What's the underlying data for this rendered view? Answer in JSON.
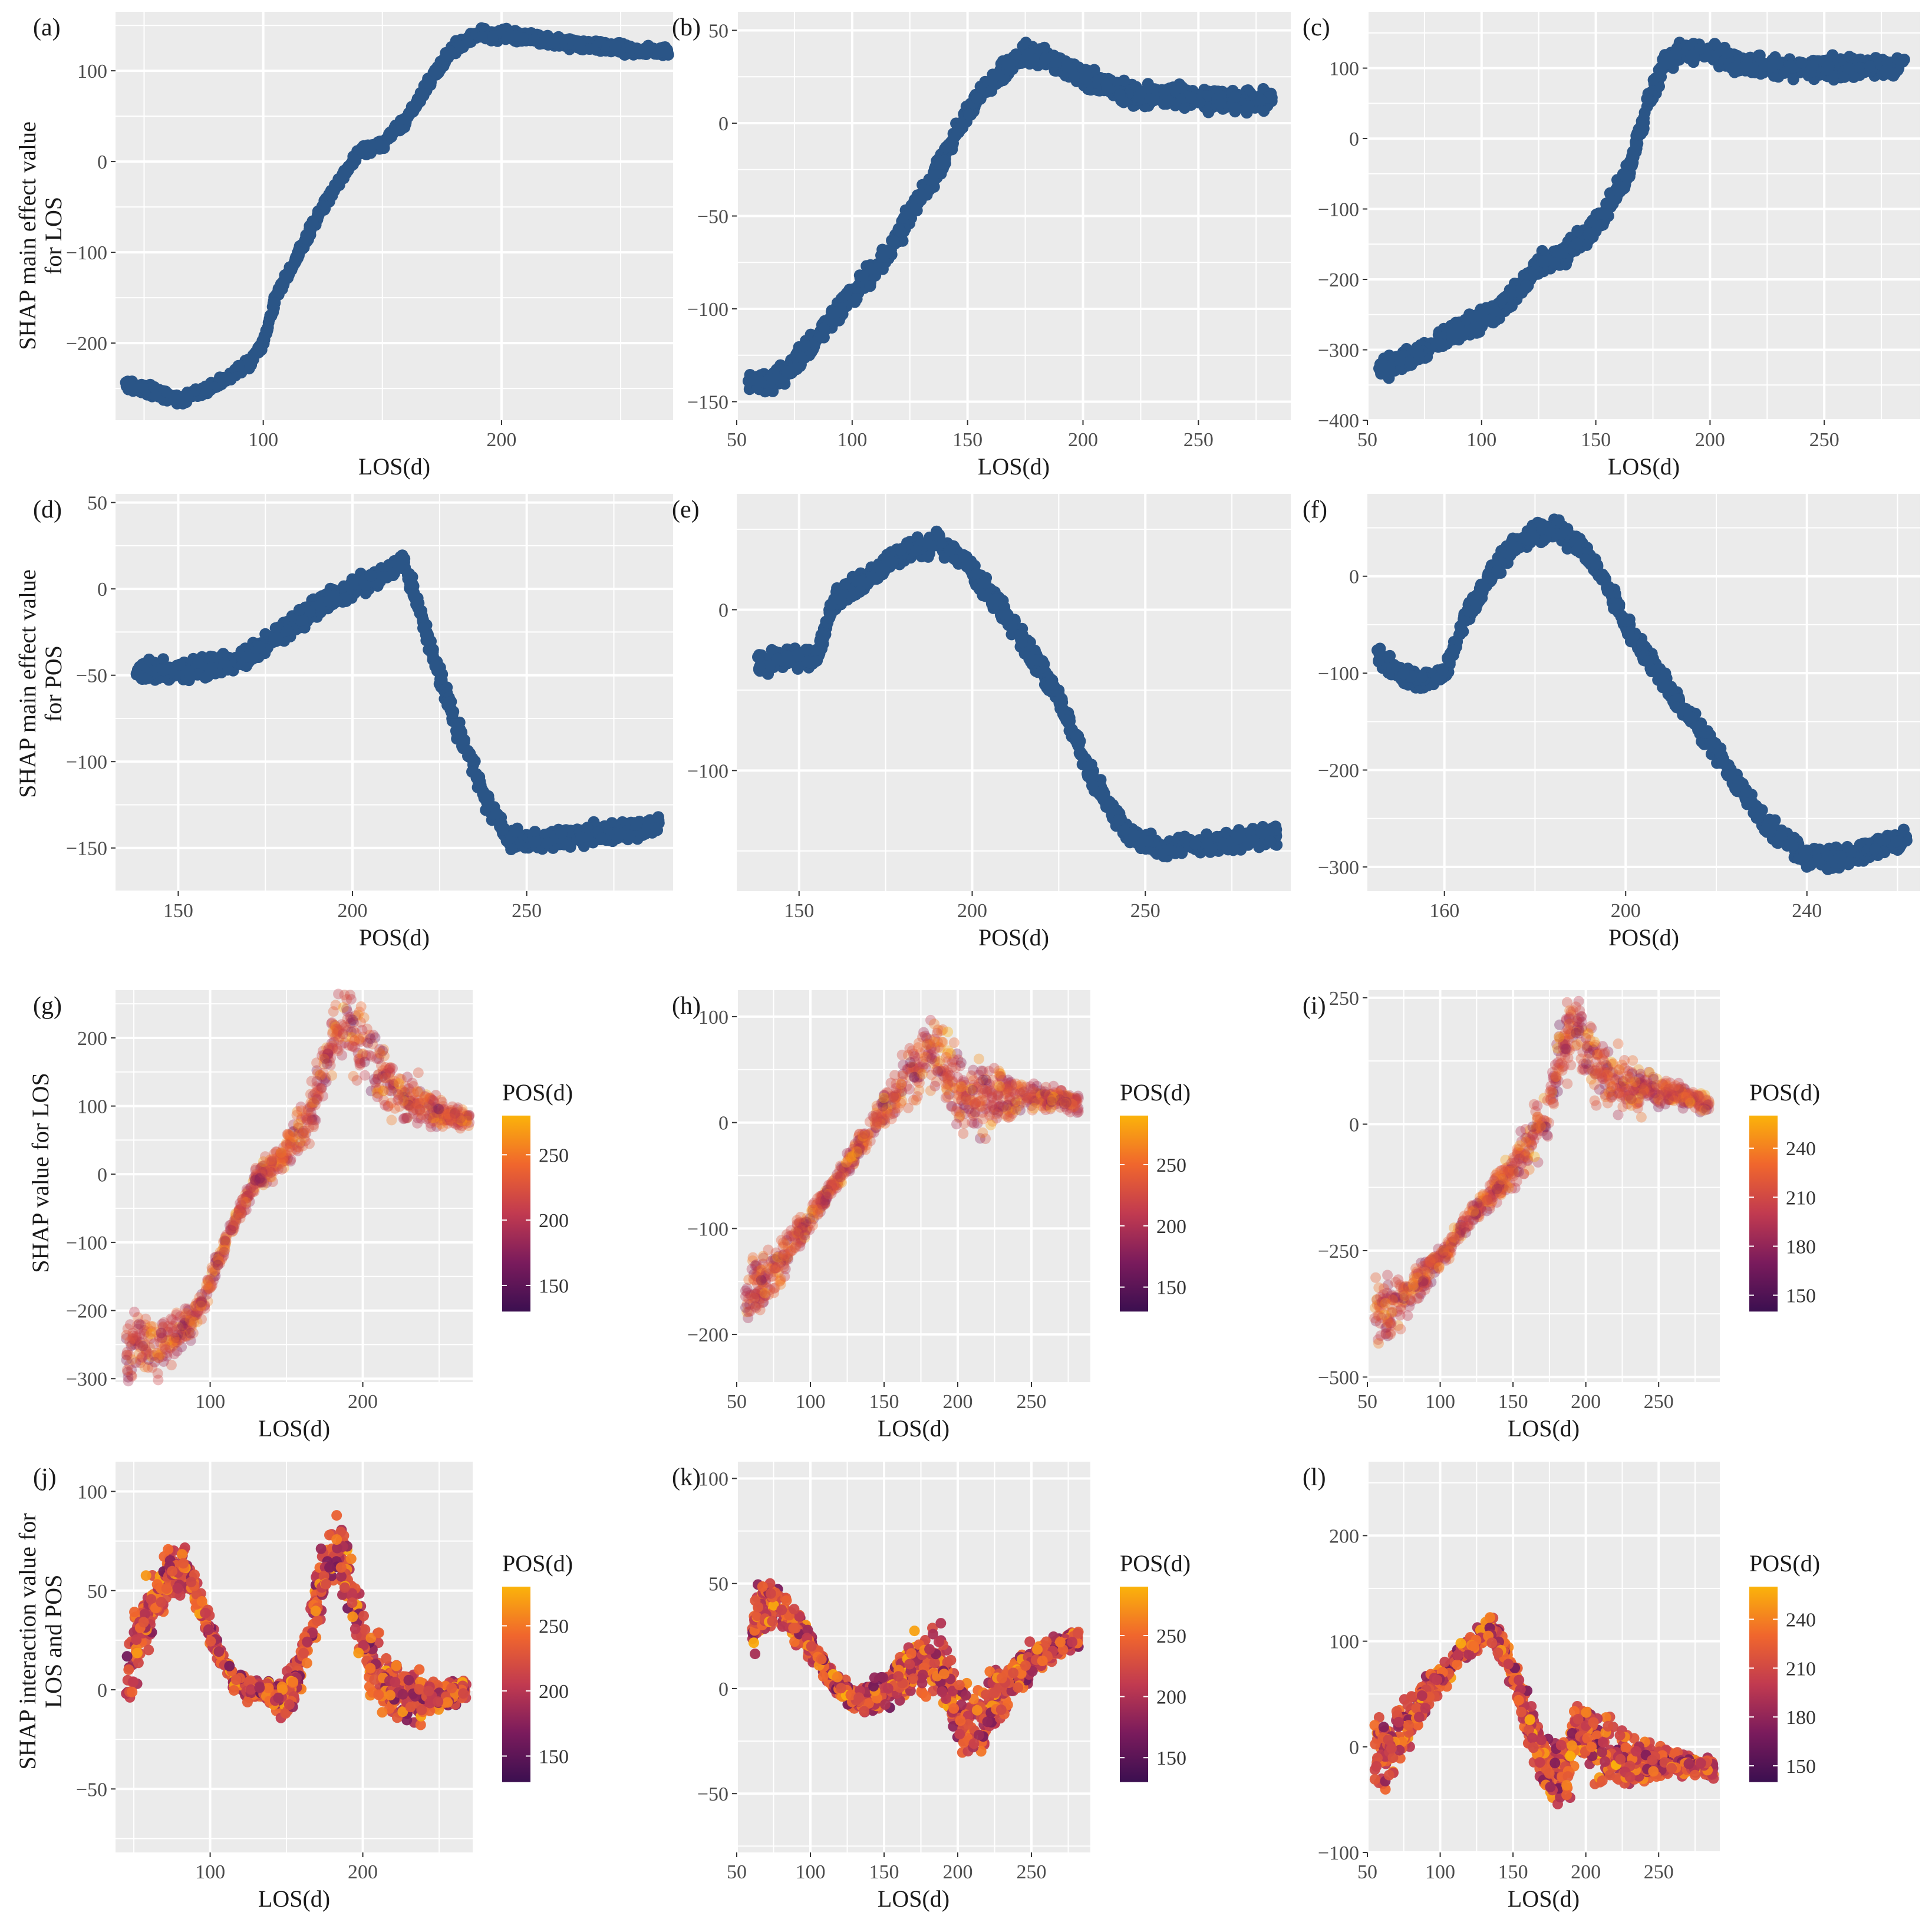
{
  "figure": {
    "y_titles": {
      "row1": [
        "SHAP main effect value",
        "for LOS"
      ],
      "row2": [
        "SHAP main effect value",
        "for POS"
      ],
      "row3": [
        "SHAP value for LOS"
      ],
      "row4": [
        "SHAP interaction value for",
        "LOS and POS"
      ]
    },
    "legend_title": "POS(d)"
  },
  "chart_data": [
    {
      "label": "(a)",
      "type": "scatter",
      "xlabel": "LOS(d)",
      "xlim": [
        38,
        272
      ],
      "ylim": [
        -285,
        165
      ],
      "xticks": [
        100,
        200
      ],
      "yticks": [
        -200,
        -100,
        0,
        100
      ],
      "curve": [
        [
          42,
          -245
        ],
        [
          55,
          -255
        ],
        [
          65,
          -262
        ],
        [
          75,
          -252
        ],
        [
          85,
          -238
        ],
        [
          95,
          -220
        ],
        [
          100,
          -200
        ],
        [
          105,
          -150
        ],
        [
          115,
          -100
        ],
        [
          125,
          -50
        ],
        [
          135,
          -10
        ],
        [
          140,
          10
        ],
        [
          150,
          20
        ],
        [
          160,
          45
        ],
        [
          170,
          90
        ],
        [
          180,
          125
        ],
        [
          190,
          140
        ],
        [
          200,
          140
        ],
        [
          215,
          135
        ],
        [
          230,
          130
        ],
        [
          250,
          125
        ],
        [
          270,
          120
        ]
      ],
      "spread": "narrow",
      "coloring": "uniform"
    },
    {
      "label": "(b)",
      "type": "scatter",
      "xlabel": "LOS(d)",
      "xlim": [
        50,
        290
      ],
      "ylim": [
        -160,
        60
      ],
      "xticks": [
        50,
        100,
        150,
        200,
        250
      ],
      "yticks": [
        -150,
        -100,
        -50,
        0,
        50
      ],
      "curve": [
        [
          55,
          -140
        ],
        [
          65,
          -140
        ],
        [
          75,
          -130
        ],
        [
          85,
          -115
        ],
        [
          95,
          -100
        ],
        [
          105,
          -85
        ],
        [
          115,
          -70
        ],
        [
          125,
          -50
        ],
        [
          135,
          -30
        ],
        [
          145,
          -5
        ],
        [
          155,
          15
        ],
        [
          165,
          28
        ],
        [
          175,
          38
        ],
        [
          185,
          35
        ],
        [
          195,
          28
        ],
        [
          210,
          20
        ],
        [
          225,
          15
        ],
        [
          240,
          15
        ],
        [
          260,
          12
        ],
        [
          282,
          12
        ]
      ],
      "spread": "medium",
      "coloring": "uniform"
    },
    {
      "label": "(c)",
      "type": "scatter",
      "xlabel": "LOS(d)",
      "xlim": [
        50,
        292
      ],
      "ylim": [
        -400,
        180
      ],
      "xticks": [
        50,
        100,
        150,
        200,
        250
      ],
      "yticks": [
        -400,
        -300,
        -200,
        -100,
        0,
        100
      ],
      "curve": [
        [
          55,
          -325
        ],
        [
          65,
          -320
        ],
        [
          75,
          -300
        ],
        [
          85,
          -280
        ],
        [
          95,
          -265
        ],
        [
          105,
          -250
        ],
        [
          115,
          -220
        ],
        [
          125,
          -180
        ],
        [
          135,
          -165
        ],
        [
          145,
          -140
        ],
        [
          155,
          -100
        ],
        [
          165,
          -40
        ],
        [
          172,
          40
        ],
        [
          180,
          110
        ],
        [
          190,
          125
        ],
        [
          200,
          120
        ],
        [
          215,
          105
        ],
        [
          240,
          100
        ],
        [
          265,
          100
        ],
        [
          285,
          105
        ]
      ],
      "spread": "medium",
      "coloring": "uniform"
    },
    {
      "label": "(d)",
      "type": "scatter",
      "xlabel": "POS(d)",
      "xlim": [
        132,
        292
      ],
      "ylim": [
        -175,
        55
      ],
      "xticks": [
        150,
        200,
        250
      ],
      "yticks": [
        -150,
        -100,
        -50,
        0,
        50
      ],
      "curve": [
        [
          138,
          -47
        ],
        [
          150,
          -48
        ],
        [
          160,
          -45
        ],
        [
          170,
          -40
        ],
        [
          180,
          -25
        ],
        [
          190,
          -10
        ],
        [
          200,
          0
        ],
        [
          210,
          10
        ],
        [
          215,
          15
        ],
        [
          222,
          -30
        ],
        [
          230,
          -80
        ],
        [
          238,
          -120
        ],
        [
          245,
          -145
        ],
        [
          255,
          -145
        ],
        [
          270,
          -142
        ],
        [
          288,
          -137
        ]
      ],
      "spread": "medium",
      "coloring": "uniform"
    },
    {
      "label": "(e)",
      "type": "scatter",
      "xlabel": "POS(d)",
      "xlim": [
        132,
        292
      ],
      "ylim": [
        -175,
        72
      ],
      "xticks": [
        150,
        200,
        250
      ],
      "yticks": [
        -100,
        0
      ],
      "curve": [
        [
          138,
          -35
        ],
        [
          145,
          -30
        ],
        [
          155,
          -30
        ],
        [
          160,
          5
        ],
        [
          170,
          20
        ],
        [
          180,
          35
        ],
        [
          190,
          42
        ],
        [
          198,
          30
        ],
        [
          205,
          10
        ],
        [
          215,
          -20
        ],
        [
          225,
          -55
        ],
        [
          235,
          -105
        ],
        [
          245,
          -140
        ],
        [
          255,
          -148
        ],
        [
          270,
          -145
        ],
        [
          288,
          -140
        ]
      ],
      "spread": "medium",
      "coloring": "uniform"
    },
    {
      "label": "(f)",
      "type": "scatter",
      "xlabel": "POS(d)",
      "xlim": [
        143,
        265
      ],
      "ylim": [
        -325,
        85
      ],
      "xticks": [
        160,
        200,
        240
      ],
      "yticks": [
        -300,
        -200,
        -100,
        0
      ],
      "curve": [
        [
          145,
          -80
        ],
        [
          150,
          -100
        ],
        [
          155,
          -110
        ],
        [
          160,
          -100
        ],
        [
          165,
          -40
        ],
        [
          170,
          0
        ],
        [
          175,
          30
        ],
        [
          180,
          45
        ],
        [
          185,
          48
        ],
        [
          190,
          30
        ],
        [
          195,
          0
        ],
        [
          200,
          -50
        ],
        [
          210,
          -120
        ],
        [
          220,
          -180
        ],
        [
          230,
          -250
        ],
        [
          240,
          -290
        ],
        [
          250,
          -290
        ],
        [
          262,
          -270
        ]
      ],
      "spread": "medium",
      "coloring": "uniform"
    },
    {
      "label": "(g)",
      "type": "scatter",
      "xlabel": "LOS(d)",
      "xlim": [
        38,
        272
      ],
      "ylim": [
        -305,
        270
      ],
      "xticks": [
        100,
        200
      ],
      "yticks": [
        -300,
        -200,
        -100,
        0,
        100,
        200
      ],
      "curve": [
        [
          45,
          -255
        ],
        [
          55,
          -250
        ],
        [
          65,
          -255
        ],
        [
          80,
          -235
        ],
        [
          90,
          -210
        ],
        [
          100,
          -160
        ],
        [
          110,
          -100
        ],
        [
          120,
          -50
        ],
        [
          130,
          -10
        ],
        [
          140,
          10
        ],
        [
          150,
          30
        ],
        [
          160,
          60
        ],
        [
          170,
          120
        ],
        [
          180,
          200
        ],
        [
          190,
          230
        ],
        [
          200,
          180
        ],
        [
          215,
          140
        ],
        [
          230,
          110
        ],
        [
          250,
          90
        ],
        [
          270,
          80
        ]
      ],
      "spread": "wide",
      "coloring": "POS(d)",
      "clim": [
        130,
        280
      ],
      "cticks": [
        150,
        200,
        250
      ]
    },
    {
      "label": "(h)",
      "type": "scatter",
      "xlabel": "LOS(d)",
      "xlim": [
        50,
        290
      ],
      "ylim": [
        -245,
        125
      ],
      "xticks": [
        50,
        100,
        150,
        200,
        250
      ],
      "yticks": [
        -200,
        -100,
        0,
        100
      ],
      "curve": [
        [
          55,
          -160
        ],
        [
          65,
          -155
        ],
        [
          75,
          -140
        ],
        [
          85,
          -120
        ],
        [
          95,
          -100
        ],
        [
          105,
          -80
        ],
        [
          115,
          -60
        ],
        [
          125,
          -40
        ],
        [
          135,
          -20
        ],
        [
          145,
          0
        ],
        [
          155,
          20
        ],
        [
          165,
          40
        ],
        [
          175,
          60
        ],
        [
          185,
          70
        ],
        [
          195,
          40
        ],
        [
          205,
          20
        ],
        [
          215,
          20
        ],
        [
          230,
          25
        ],
        [
          250,
          25
        ],
        [
          282,
          20
        ]
      ],
      "spread": "wide",
      "coloring": "POS(d)",
      "clim": [
        130,
        290
      ],
      "cticks": [
        150,
        200,
        250
      ]
    },
    {
      "label": "(i)",
      "type": "scatter",
      "xlabel": "LOS(d)",
      "xlim": [
        50,
        292
      ],
      "ylim": [
        -510,
        265
      ],
      "xticks": [
        50,
        100,
        150,
        200,
        250
      ],
      "yticks": [
        -500,
        -250,
        0,
        250
      ],
      "curve": [
        [
          55,
          -380
        ],
        [
          65,
          -370
        ],
        [
          75,
          -340
        ],
        [
          85,
          -310
        ],
        [
          95,
          -280
        ],
        [
          105,
          -250
        ],
        [
          115,
          -200
        ],
        [
          125,
          -170
        ],
        [
          135,
          -140
        ],
        [
          145,
          -110
        ],
        [
          155,
          -60
        ],
        [
          165,
          -20
        ],
        [
          175,
          50
        ],
        [
          185,
          150
        ],
        [
          195,
          200
        ],
        [
          205,
          120
        ],
        [
          220,
          80
        ],
        [
          240,
          70
        ],
        [
          260,
          60
        ],
        [
          285,
          40
        ]
      ],
      "spread": "wide",
      "coloring": "POS(d)",
      "clim": [
        140,
        260
      ],
      "cticks": [
        150,
        180,
        210,
        240
      ]
    },
    {
      "label": "(j)",
      "type": "scatter",
      "xlabel": "LOS(d)",
      "xlim": [
        38,
        272
      ],
      "ylim": [
        -82,
        115
      ],
      "xticks": [
        100,
        200
      ],
      "yticks": [
        -50,
        0,
        50,
        100
      ],
      "curve": [
        [
          45,
          5
        ],
        [
          55,
          30
        ],
        [
          65,
          50
        ],
        [
          75,
          60
        ],
        [
          85,
          60
        ],
        [
          95,
          40
        ],
        [
          105,
          20
        ],
        [
          115,
          5
        ],
        [
          125,
          0
        ],
        [
          135,
          0
        ],
        [
          145,
          -5
        ],
        [
          155,
          0
        ],
        [
          165,
          30
        ],
        [
          175,
          60
        ],
        [
          185,
          70
        ],
        [
          195,
          40
        ],
        [
          205,
          10
        ],
        [
          220,
          0
        ],
        [
          240,
          -5
        ],
        [
          268,
          0
        ]
      ],
      "spread": "wide",
      "coloring": "POS(d)",
      "clim": [
        130,
        280
      ],
      "cticks": [
        150,
        200,
        250
      ]
    },
    {
      "label": "(k)",
      "type": "scatter",
      "xlabel": "LOS(d)",
      "xlim": [
        50,
        290
      ],
      "ylim": [
        -78,
        108
      ],
      "xticks": [
        50,
        100,
        150,
        200,
        250
      ],
      "yticks": [
        -50,
        0,
        50,
        100
      ],
      "curve": [
        [
          60,
          30
        ],
        [
          70,
          40
        ],
        [
          80,
          40
        ],
        [
          90,
          30
        ],
        [
          100,
          20
        ],
        [
          110,
          10
        ],
        [
          120,
          0
        ],
        [
          130,
          -5
        ],
        [
          140,
          -5
        ],
        [
          150,
          0
        ],
        [
          160,
          5
        ],
        [
          170,
          10
        ],
        [
          180,
          15
        ],
        [
          190,
          10
        ],
        [
          200,
          -10
        ],
        [
          210,
          -20
        ],
        [
          220,
          -10
        ],
        [
          235,
          5
        ],
        [
          255,
          15
        ],
        [
          282,
          25
        ]
      ],
      "spread": "wide",
      "coloring": "POS(d)",
      "clim": [
        130,
        290
      ],
      "cticks": [
        150,
        200,
        250
      ]
    },
    {
      "label": "(l)",
      "type": "scatter",
      "xlabel": "LOS(d)",
      "xlim": [
        50,
        292
      ],
      "ylim": [
        -100,
        270
      ],
      "xticks": [
        50,
        100,
        150,
        200,
        250
      ],
      "yticks": [
        -100,
        0,
        100,
        200
      ],
      "curve": [
        [
          55,
          -10
        ],
        [
          65,
          0
        ],
        [
          75,
          20
        ],
        [
          85,
          40
        ],
        [
          95,
          60
        ],
        [
          105,
          70
        ],
        [
          115,
          90
        ],
        [
          125,
          100
        ],
        [
          135,
          110
        ],
        [
          145,
          90
        ],
        [
          155,
          50
        ],
        [
          165,
          10
        ],
        [
          175,
          -30
        ],
        [
          185,
          -20
        ],
        [
          195,
          20
        ],
        [
          205,
          0
        ],
        [
          220,
          -10
        ],
        [
          240,
          -15
        ],
        [
          260,
          -15
        ],
        [
          288,
          -20
        ]
      ],
      "spread": "wide",
      "coloring": "POS(d)",
      "clim": [
        140,
        260
      ],
      "cticks": [
        150,
        180,
        210,
        240
      ]
    }
  ]
}
